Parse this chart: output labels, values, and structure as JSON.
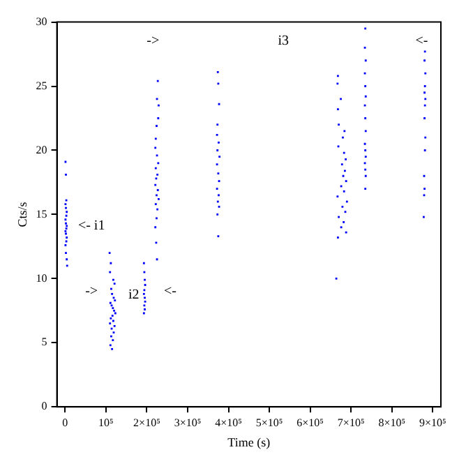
{
  "chart_data": {
    "type": "scatter",
    "xlabel": "Time (s)",
    "ylabel": "Cts/s",
    "marker": "square",
    "grid": false,
    "legend": false,
    "xlim": [
      -20000,
      920000
    ],
    "ylim": [
      0,
      30
    ],
    "xticks": [
      0,
      {
        "value": 100000,
        "label": "10⁵"
      },
      {
        "value": 200000,
        "label": "2×10⁵"
      },
      {
        "value": 300000,
        "label": "3×10⁵"
      },
      {
        "value": 400000,
        "label": "4×10⁵"
      },
      {
        "value": 500000,
        "label": "5×10⁵"
      },
      {
        "value": 600000,
        "label": "6×10⁵"
      },
      {
        "value": 700000,
        "label": "7×10⁵"
      },
      {
        "value": 800000,
        "label": "8×10⁵"
      },
      {
        "value": 900000,
        "label": "9×10⁵"
      }
    ],
    "yticks": [
      0,
      5,
      10,
      15,
      20,
      25,
      30
    ],
    "annotations": [
      "<- i1",
      "->",
      "i2",
      "<-",
      "->",
      "i3",
      "<-"
    ],
    "series": [
      {
        "color": "#0000ff",
        "x": [
          1000,
          2000,
          3000,
          1000,
          2000,
          4000,
          3000,
          1000,
          2000,
          4000,
          3000,
          1000,
          2000,
          4000,
          3000,
          1000,
          2000,
          4000,
          5000,
          109000,
          112000,
          110000,
          118000,
          121000,
          113000,
          115000,
          119000,
          122000,
          111000,
          114000,
          117000,
          120000,
          123000,
          116000,
          112000,
          118000,
          110000,
          121000,
          114000,
          119000,
          113000,
          117000,
          111000,
          115000,
          193000,
          194000,
          195000,
          196000,
          194000,
          193000,
          195000,
          196000,
          194000,
          195000,
          193000,
          227000,
          225000,
          229000,
          228000,
          224000,
          222000,
          221000,
          225000,
          228000,
          222000,
          226000,
          223000,
          221000,
          227000,
          224000,
          229000,
          222000,
          226000,
          224000,
          221000,
          223000,
          225000,
          374000,
          375000,
          377000,
          373000,
          372000,
          376000,
          373000,
          378000,
          372000,
          375000,
          377000,
          372000,
          376000,
          374000,
          377000,
          373000,
          375000,
          668000,
          667000,
          675000,
          668000,
          670000,
          684000,
          680000,
          669000,
          683000,
          687000,
          678000,
          685000,
          681000,
          688000,
          676000,
          683000,
          667000,
          690000,
          679000,
          686000,
          670000,
          682000,
          676000,
          688000,
          668000,
          664000,
          735000,
          734000,
          736000,
          734000,
          735000,
          736000,
          734000,
          735000,
          736000,
          734000,
          735000,
          736000,
          734000,
          735000,
          736000,
          735000,
          881000,
          880000,
          882000,
          881000,
          880000,
          882000,
          881000,
          880000,
          882000,
          881000,
          879000,
          880000,
          879000,
          878000
        ],
        "values": [
          19.1,
          18.1,
          16.1,
          15.8,
          15.5,
          15.2,
          14.9,
          14.6,
          14.3,
          14.1,
          13.9,
          13.7,
          13.5,
          13.2,
          12.9,
          12.6,
          12.0,
          11.5,
          11.0,
          12.0,
          11.2,
          10.5,
          9.9,
          9.6,
          9.2,
          8.8,
          8.5,
          8.3,
          8.1,
          7.9,
          7.7,
          7.5,
          7.3,
          7.1,
          6.9,
          6.7,
          6.5,
          6.3,
          6.1,
          5.8,
          5.5,
          5.2,
          4.8,
          4.5,
          11.2,
          10.5,
          9.9,
          9.5,
          9.1,
          8.8,
          8.5,
          8.2,
          7.9,
          7.6,
          7.3,
          25.4,
          24.0,
          23.5,
          22.5,
          21.9,
          20.9,
          20.2,
          19.6,
          19.0,
          18.6,
          18.1,
          17.8,
          17.3,
          16.9,
          16.5,
          16.2,
          15.8,
          15.4,
          14.7,
          14.0,
          12.8,
          11.5,
          26.1,
          25.2,
          23.6,
          22.0,
          21.2,
          20.6,
          20.0,
          19.5,
          18.9,
          18.2,
          17.6,
          17.0,
          16.5,
          16.0,
          15.6,
          15.0,
          13.3,
          25.8,
          25.2,
          24.0,
          23.2,
          22.0,
          21.5,
          21.0,
          20.3,
          19.8,
          19.3,
          18.9,
          18.4,
          18.0,
          17.6,
          17.2,
          16.8,
          16.4,
          16.0,
          15.6,
          15.2,
          14.8,
          14.4,
          14.0,
          13.6,
          13.2,
          10.0,
          29.5,
          28.0,
          27.0,
          26.0,
          25.0,
          24.2,
          23.5,
          22.5,
          21.5,
          20.5,
          20.0,
          19.5,
          19.0,
          18.5,
          18.0,
          17.0,
          27.7,
          27.0,
          26.0,
          25.0,
          24.5,
          24.0,
          23.5,
          22.5,
          21.0,
          20.0,
          18.0,
          17.0,
          16.5,
          14.8
        ]
      }
    ]
  }
}
